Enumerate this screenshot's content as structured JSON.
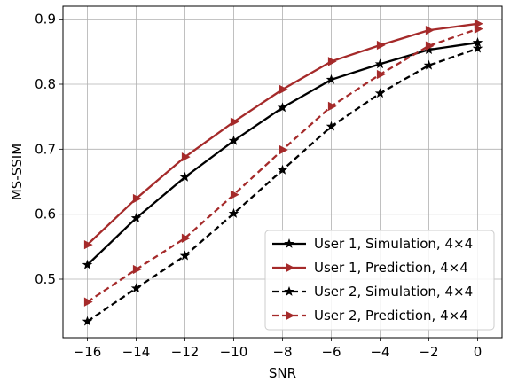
{
  "chart_data": {
    "type": "line",
    "title": "",
    "xlabel": "SNR",
    "ylabel": "MS-SSIM",
    "xlim": [
      -17,
      1
    ],
    "ylim": [
      0.41,
      0.92
    ],
    "xticks": [
      -16,
      -14,
      -12,
      -10,
      -8,
      -6,
      -4,
      -2,
      0
    ],
    "yticks": [
      0.5,
      0.6,
      0.7,
      0.8,
      0.9
    ],
    "grid": true,
    "legend_position": "bottom-right",
    "x": [
      -16,
      -14,
      -12,
      -10,
      -8,
      -6,
      -4,
      -2,
      0
    ],
    "series": [
      {
        "name": "User 1, Simulation, 4×4",
        "color": "#000000",
        "linestyle": "solid",
        "marker": "star",
        "values": [
          0.522,
          0.594,
          0.657,
          0.713,
          0.764,
          0.807,
          0.831,
          0.853,
          0.864
        ]
      },
      {
        "name": "User 1, Prediction, 4×4",
        "color": "#a52a2a",
        "linestyle": "solid",
        "marker": "triangle-right",
        "values": [
          0.553,
          0.624,
          0.688,
          0.742,
          0.792,
          0.835,
          0.86,
          0.883,
          0.893
        ]
      },
      {
        "name": "User 2, Simulation, 4×4",
        "color": "#000000",
        "linestyle": "dashed",
        "marker": "star",
        "values": [
          0.435,
          0.486,
          0.536,
          0.601,
          0.668,
          0.735,
          0.786,
          0.829,
          0.855
        ]
      },
      {
        "name": "User 2, Prediction, 4×4",
        "color": "#a52a2a",
        "linestyle": "dashed",
        "marker": "triangle-right",
        "values": [
          0.465,
          0.515,
          0.563,
          0.63,
          0.699,
          0.766,
          0.815,
          0.859,
          0.885
        ]
      }
    ]
  }
}
